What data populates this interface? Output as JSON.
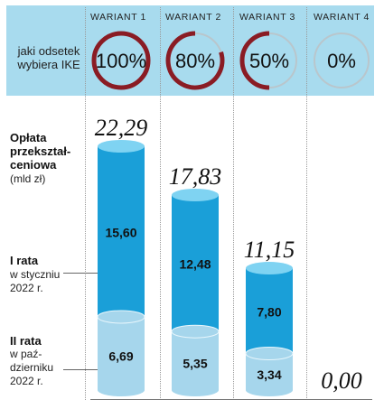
{
  "header": {
    "variants": [
      "WARIANT 1",
      "WARIANT 2",
      "WARIANT 3",
      "WARIANT 4"
    ],
    "row_label_line1": "jaki odsetek",
    "row_label_line2": "wybiera IKE",
    "ring_color": "#8a1c24",
    "ring_track_color": "#b9c6cc"
  },
  "labels": {
    "fee_line1": "Opłata",
    "fee_line2": "przekształ-",
    "fee_line3": "ceniowa",
    "fee_unit": "(mld zł)",
    "rata1_title": "I rata",
    "rata1_line1": "w styczniu",
    "rata1_line2": "2022 r.",
    "rata2_title": "II rata",
    "rata2_line1": "w paź-",
    "rata2_line2": "dzierniku",
    "rata2_line3": "2022 r."
  },
  "chart_data": {
    "type": "bar",
    "stacked": true,
    "categories": [
      "WARIANT 1",
      "WARIANT 2",
      "WARIANT 3",
      "WARIANT 4"
    ],
    "ike_share_percent": [
      100,
      80,
      50,
      0
    ],
    "ike_share_labels": [
      "100%",
      "80%",
      "50%",
      "0%"
    ],
    "series": [
      {
        "name": "II rata",
        "values": [
          6.69,
          5.35,
          3.34,
          0
        ],
        "labels": [
          "6,69",
          "5,35",
          "3,34",
          ""
        ],
        "color": "#a6d6ec"
      },
      {
        "name": "I rata",
        "values": [
          15.6,
          12.48,
          7.8,
          0
        ],
        "labels": [
          "15,60",
          "12,48",
          "7,80",
          ""
        ],
        "color": "#2eaee2"
      }
    ],
    "totals": [
      22.29,
      17.83,
      11.15,
      0.0
    ],
    "total_labels": [
      "22,29",
      "17,83",
      "11,15",
      "0,00"
    ],
    "ylabel": "Opłata przekształceniowa (mld zł)",
    "colors": {
      "top_cap": "#7fd3f2",
      "dark_body": "#1a9fd8",
      "light_body": "#a6d6ec",
      "divider": "#e8f6fc"
    }
  }
}
